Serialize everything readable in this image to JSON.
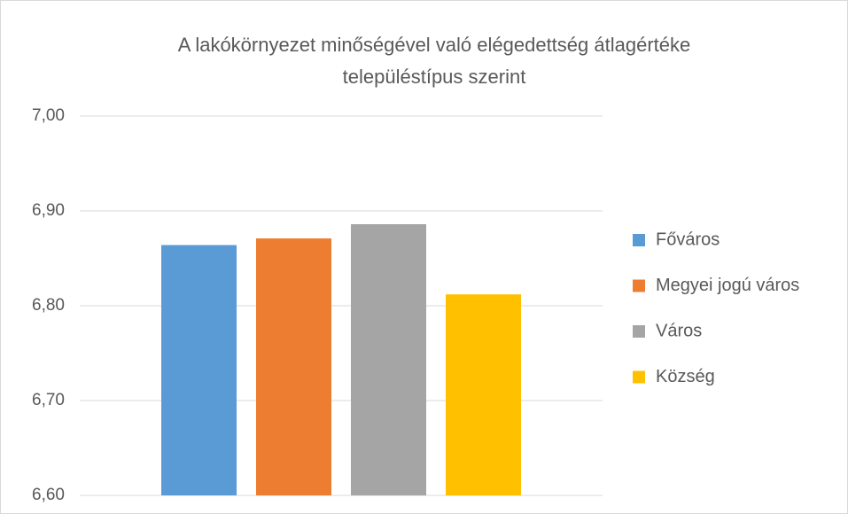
{
  "chart_data": {
    "type": "bar",
    "title": [
      "A lakókörnyezet minőségével való elégedettség átlagértéke",
      "településtípus szerint"
    ],
    "categories": [
      null
    ],
    "series": [
      {
        "name": "Főváros",
        "color": "#5b9bd5",
        "values": [
          6.864
        ]
      },
      {
        "name": "Megyei jogú város",
        "color": "#ed7d31",
        "values": [
          6.871
        ]
      },
      {
        "name": "Város",
        "color": "#a5a5a5",
        "values": [
          6.886
        ]
      },
      {
        "name": "Község",
        "color": "#ffc000",
        "values": [
          6.812
        ]
      }
    ],
    "ylim": [
      6.6,
      7.0
    ],
    "yticks": [
      {
        "value": 6.6,
        "label": "6,60"
      },
      {
        "value": 6.7,
        "label": "6,70"
      },
      {
        "value": 6.8,
        "label": "6,80"
      },
      {
        "value": 6.9,
        "label": "6,90"
      },
      {
        "value": 7.0,
        "label": "7,00"
      }
    ],
    "grid": true,
    "legend": "right"
  }
}
